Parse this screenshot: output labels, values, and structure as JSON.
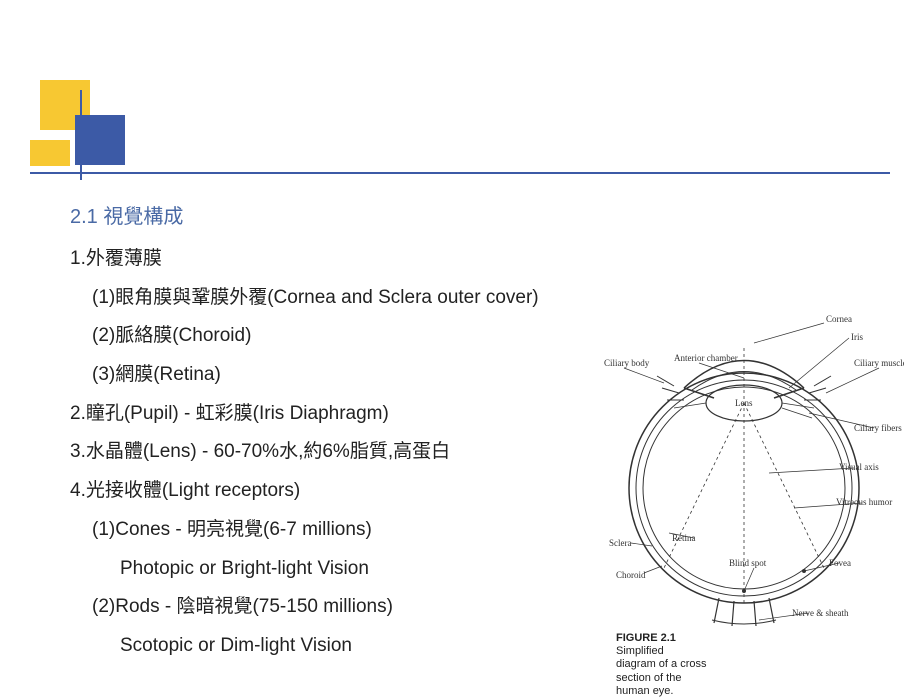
{
  "section_title": "2.1 視覺構成",
  "lines": [
    {
      "text": "1.外覆薄膜",
      "indent": "ind1"
    },
    {
      "text": "(1)眼角膜與鞏膜外覆(Cornea and Sclera outer cover)",
      "indent": "ind2"
    },
    {
      "text": "(2)脈絡膜(Choroid)",
      "indent": "ind2"
    },
    {
      "text": "(3)網膜(Retina)",
      "indent": "ind2"
    },
    {
      "text": "2.瞳孔(Pupil) - 虹彩膜(Iris Diaphragm)",
      "indent": "ind1"
    },
    {
      "text": "3.水晶體(Lens) - 60-70%水,約6%脂質,高蛋白",
      "indent": "ind1"
    },
    {
      "text": "4.光接收體(Light receptors)",
      "indent": "ind1"
    },
    {
      "text": "(1)Cones - 明亮視覺(6-7 millions)",
      "indent": "ind2"
    },
    {
      "text": "Photopic or Bright-light Vision",
      "indent": "ind3"
    },
    {
      "text": "(2)Rods - 陰暗視覺(75-150 millions)",
      "indent": "ind2"
    },
    {
      "text": "Scotopic or Dim-light Vision",
      "indent": "ind3"
    }
  ],
  "figure": {
    "title_label": "FIGURE 2.1",
    "caption_lines": [
      "Simplified",
      "diagram of a cross",
      "section of the",
      "human eye."
    ],
    "labels": {
      "cornea": "Cornea",
      "iris": "Iris",
      "ciliary_body": "Ciliary body",
      "anterior_chamber": "Anterior chamber",
      "lens": "Lens",
      "ciliary_muscle": "Ciliary muscle",
      "ciliary_fibers": "Ciliary fibers",
      "visual_axis": "Visual axis",
      "vitreous_humor": "Vitreous humor",
      "retina": "Retina",
      "sclera": "Sclera",
      "choroid": "Choroid",
      "blind_spot": "Blind spot",
      "fovea": "Fovea",
      "nerve_sheath": "Nerve & sheath"
    },
    "colors": {
      "stroke": "#333333",
      "fill": "#ffffff",
      "text": "#333333"
    }
  },
  "deco_colors": {
    "yellow": "#f7c832",
    "blue": "#3c5aa6"
  }
}
